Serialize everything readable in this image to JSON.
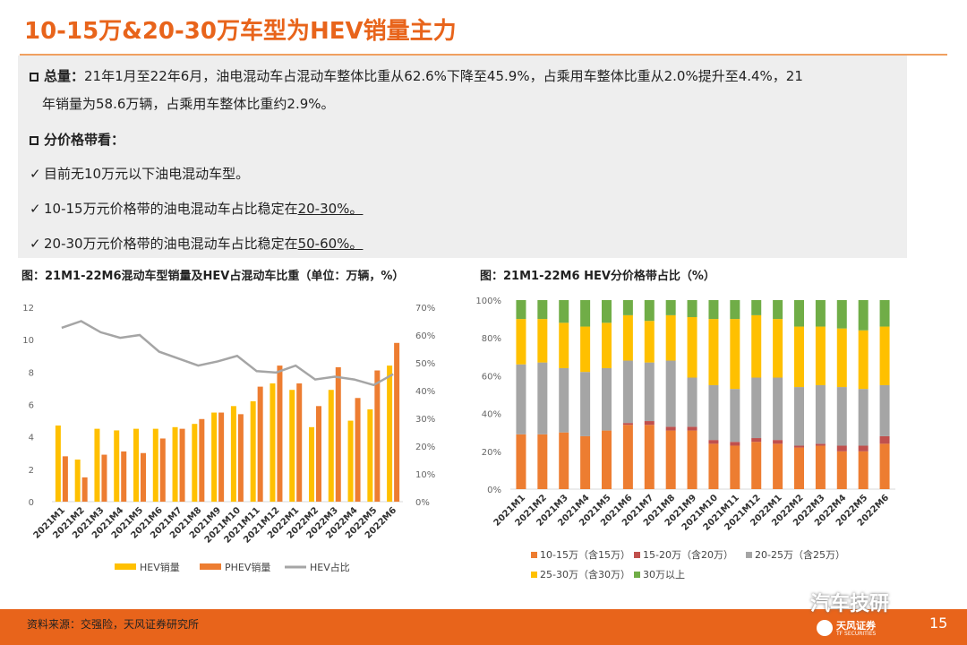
{
  "page": {
    "title": "10-15万&20-30万车型为HEV销量主力",
    "page_number": "15",
    "source": "资料来源：交强险，天风证券研究所",
    "watermark": "汽车技研",
    "logo_name": "天风证券",
    "logo_sub": "TF SECURITIES"
  },
  "summary": {
    "total_label": "总量：",
    "total_text_1": "21年1月至22年6月，油电混动车占混动车整体比重从62.6%下降至45.9%，占乘用车整体比重从2.0%提升至4.4%，21",
    "total_text_2": "年销量为58.6万辆，占乘用车整体比重约2.9%。",
    "price_label": "分价格带看：",
    "check_mark": "✓",
    "bullet1": "目前无10万元以下油电混动车型。",
    "bullet2_pre": "10-15万元价格带的油电混动车占比稳定在",
    "bullet2_hl": "20-30%。",
    "bullet3_pre": "20-30万元价格带的油电混动车占比稳定在",
    "bullet3_hl": "50-60%。"
  },
  "chart_data": [
    {
      "type": "bar",
      "title": "图：21M1-22M6混动车型销量及HEV占混动车比重（单位：万辆，%）",
      "categories": [
        "2021M1",
        "2021M2",
        "2021M3",
        "2021M4",
        "2021M5",
        "2021M6",
        "2021M7",
        "2021M8",
        "2021M9",
        "2021M10",
        "2021M11",
        "2021M12",
        "2022M1",
        "2022M2",
        "2022M3",
        "2022M4",
        "2022M5",
        "2022M6"
      ],
      "series": [
        {
          "name": "HEV销量",
          "type": "bar",
          "color": "#ffc000",
          "values": [
            4.7,
            2.6,
            4.5,
            4.4,
            4.5,
            4.5,
            4.6,
            4.8,
            5.5,
            5.9,
            6.2,
            7.3,
            6.9,
            4.6,
            6.9,
            5.0,
            5.7,
            8.4
          ]
        },
        {
          "name": "PHEV销量",
          "type": "bar",
          "color": "#ed7d31",
          "values": [
            2.8,
            1.5,
            2.9,
            3.1,
            3.0,
            3.9,
            4.5,
            5.1,
            5.5,
            5.4,
            7.1,
            8.4,
            7.3,
            5.9,
            8.3,
            6.4,
            8.1,
            9.8
          ]
        },
        {
          "name": "HEV占比",
          "type": "line",
          "axis": "right",
          "color": "#a5a5a5",
          "values": [
            62.6,
            65,
            61,
            59,
            60,
            54,
            51.5,
            49,
            50.5,
            52.5,
            47,
            46.5,
            49,
            44,
            45,
            44,
            42,
            45.9
          ]
        }
      ],
      "ylim": [
        0,
        12
      ],
      "yticks": [
        "0",
        "2",
        "4",
        "6",
        "8",
        "10",
        "12"
      ],
      "y2lim": [
        0,
        70
      ],
      "y2ticks": [
        "0%",
        "10%",
        "20%",
        "30%",
        "40%",
        "50%",
        "60%",
        "70%"
      ],
      "legend": "bottom"
    },
    {
      "type": "bar",
      "stacked": true,
      "title": "图：21M1-22M6 HEV分价格带占比（%）",
      "categories": [
        "2021M1",
        "2021M2",
        "2021M3",
        "2021M4",
        "2021M5",
        "2021M6",
        "2021M7",
        "2021M8",
        "2021M9",
        "2021M10",
        "2021M11",
        "2021M12",
        "2022M1",
        "2022M2",
        "2022M3",
        "2022M4",
        "2022M5",
        "2022M6"
      ],
      "series": [
        {
          "name": "10-15万（含15万）",
          "color": "#ed7d31",
          "values": [
            29,
            29,
            30,
            28,
            31,
            34,
            34,
            31,
            31,
            24,
            23,
            25,
            24,
            22,
            23,
            20,
            20,
            24
          ]
        },
        {
          "name": "15-20万（含20万）",
          "color": "#c0504d",
          "values": [
            0,
            0,
            0,
            0,
            0,
            1,
            2,
            2,
            2,
            2,
            2,
            2,
            2,
            1,
            1,
            3,
            3,
            4
          ]
        },
        {
          "name": "20-25万（含25万）",
          "color": "#a5a5a5",
          "values": [
            37,
            38,
            34,
            34,
            33,
            33,
            31,
            35,
            26,
            29,
            28,
            32,
            33,
            31,
            31,
            31,
            30,
            27
          ]
        },
        {
          "name": "25-30万（含30万）",
          "color": "#ffc000",
          "values": [
            24,
            23,
            24,
            24,
            24,
            24,
            22,
            24,
            32,
            35,
            37,
            33,
            31,
            32,
            31,
            31,
            31,
            31
          ]
        },
        {
          "name": "30万以上",
          "color": "#70ad47",
          "values": [
            10,
            10,
            12,
            14,
            12,
            8,
            11,
            8,
            9,
            10,
            10,
            8,
            10,
            14,
            14,
            15,
            16,
            14
          ]
        }
      ],
      "ylim": [
        0,
        100
      ],
      "yticks": [
        "0%",
        "20%",
        "40%",
        "60%",
        "80%",
        "100%"
      ],
      "legend": "bottom"
    }
  ]
}
